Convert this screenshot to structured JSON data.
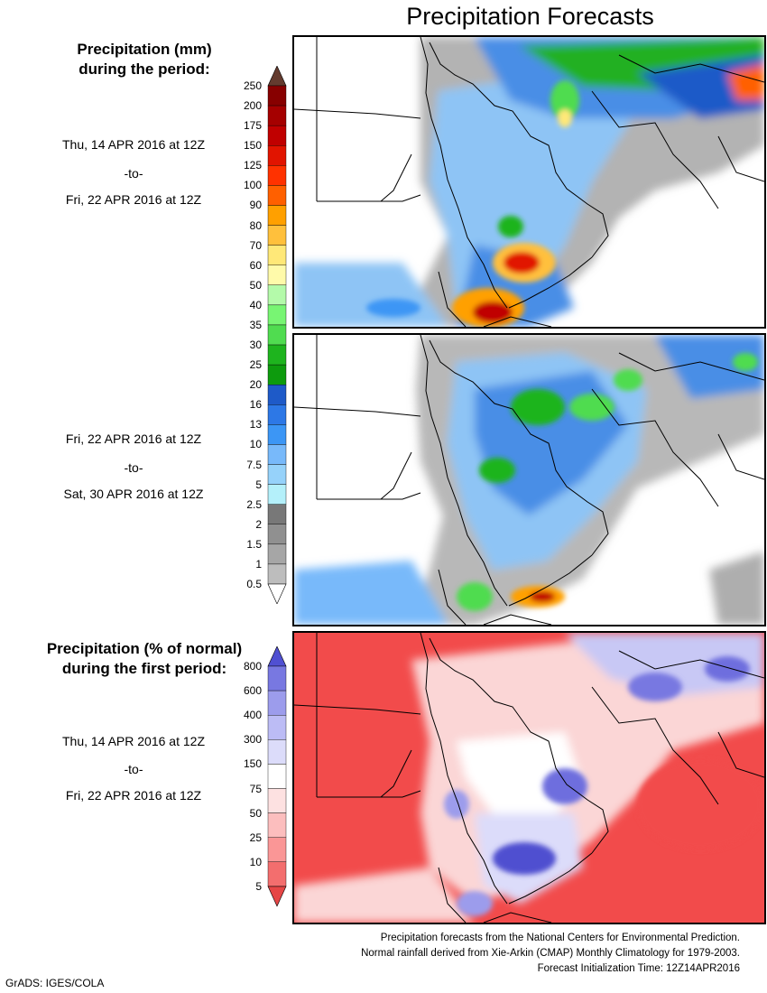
{
  "title": "Precipitation Forecasts",
  "amount_legend": {
    "title_lines": [
      "Precipitation (mm)",
      "during the period:"
    ],
    "levels": [
      "0.5",
      "1",
      "1.5",
      "2",
      "2.5",
      "5",
      "7.5",
      "10",
      "13",
      "16",
      "20",
      "25",
      "30",
      "35",
      "40",
      "50",
      "60",
      "70",
      "80",
      "90",
      "100",
      "125",
      "150",
      "175",
      "200",
      "250"
    ],
    "colors": [
      "#ffffff",
      "#bdbdbd",
      "#a6a6a6",
      "#909090",
      "#787878",
      "#b4f0fa",
      "#96d2fa",
      "#78b9fa",
      "#3c96f5",
      "#2d78e6",
      "#1e5ac8",
      "#0d9b0d",
      "#1eb41e",
      "#50dc50",
      "#78f573",
      "#b4faaa",
      "#fffaaa",
      "#ffe878",
      "#ffc03c",
      "#ffa000",
      "#ff6000",
      "#ff3200",
      "#e11400",
      "#c00000",
      "#a50000",
      "#870000",
      "#643b2f"
    ]
  },
  "percent_legend": {
    "title_lines": [
      "Precipitation (% of normal)",
      "during the first period:"
    ],
    "levels": [
      "5",
      "10",
      "25",
      "50",
      "75",
      "150",
      "300",
      "400",
      "600",
      "800"
    ],
    "colors": [
      "#e64646",
      "#f36e6e",
      "#fa9696",
      "#fcbebe",
      "#fde1e1",
      "#ffffff",
      "#dcdcfa",
      "#bcbcf5",
      "#9c9cec",
      "#7878e1",
      "#5050d2"
    ]
  },
  "periods": [
    {
      "start": "Thu, 14 APR 2016 at 12Z",
      "sep": "-to-",
      "end": "Fri, 22 APR 2016 at 12Z"
    },
    {
      "start": "Fri, 22 APR 2016 at 12Z",
      "sep": "-to-",
      "end": "Sat, 30 APR 2016 at 12Z"
    },
    {
      "start": "Thu, 14 APR 2016 at 12Z",
      "sep": "-to-",
      "end": "Fri, 22 APR 2016 at 12Z"
    }
  ],
  "footer": {
    "line1": "Precipitation forecasts from the National Centers for Environmental Prediction.",
    "line2": "Normal rainfall derived from Xie-Arkin (CMAP) Monthly Climatology for 1979-2003.",
    "line3": "Forecast Initialization Time: 12Z14APR2016"
  },
  "credit": "GrADS: IGES/COLA"
}
